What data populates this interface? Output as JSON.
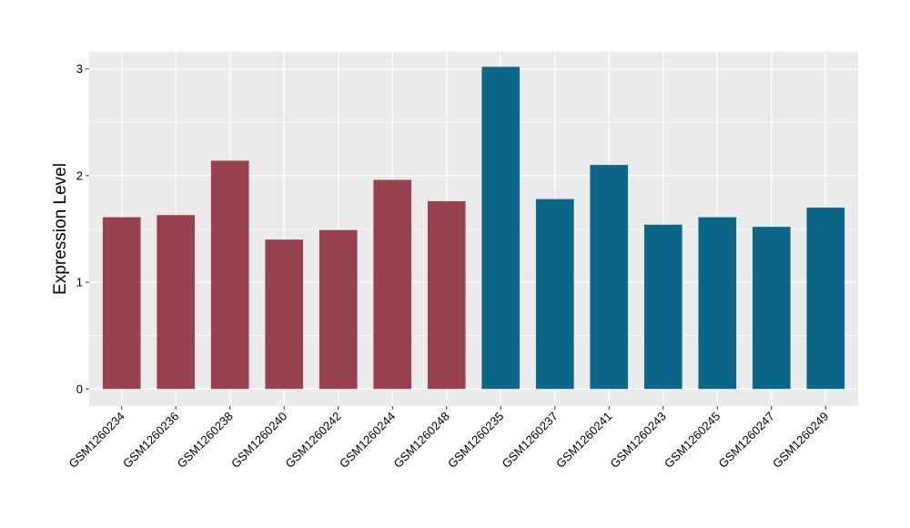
{
  "chart_data": {
    "type": "bar",
    "title": "",
    "xlabel": "",
    "ylabel": "Expression Level",
    "ylim": [
      -0.16,
      3.16
    ],
    "yticks": [
      0,
      1,
      2,
      3
    ],
    "grid": true,
    "categories": [
      "GSM1260234",
      "GSM1260236",
      "GSM1260238",
      "GSM1260240",
      "GSM1260242",
      "GSM1260244",
      "GSM1260248",
      "GSM1260235",
      "GSM1260237",
      "GSM1260241",
      "GSM1260243",
      "GSM1260245",
      "GSM1260247",
      "GSM1260249"
    ],
    "values": [
      1.61,
      1.63,
      2.14,
      1.4,
      1.49,
      1.96,
      1.76,
      3.02,
      1.78,
      2.1,
      1.54,
      1.61,
      1.52,
      1.7
    ],
    "groups": [
      "g1",
      "g1",
      "g1",
      "g1",
      "g1",
      "g1",
      "g1",
      "g2",
      "g2",
      "g2",
      "g2",
      "g2",
      "g2",
      "g2"
    ],
    "colors": {
      "g1": "#99424f",
      "g2": "#0b6688",
      "panel": "#ebebeb",
      "grid": "#ffffff"
    }
  }
}
